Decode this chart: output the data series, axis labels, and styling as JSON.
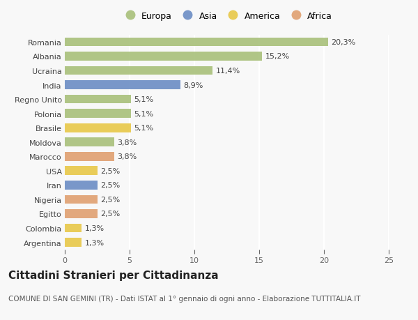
{
  "countries": [
    "Romania",
    "Albania",
    "Ucraina",
    "India",
    "Regno Unito",
    "Polonia",
    "Brasile",
    "Moldova",
    "Marocco",
    "USA",
    "Iran",
    "Nigeria",
    "Egitto",
    "Colombia",
    "Argentina"
  ],
  "values": [
    20.3,
    15.2,
    11.4,
    8.9,
    5.1,
    5.1,
    5.1,
    3.8,
    3.8,
    2.5,
    2.5,
    2.5,
    2.5,
    1.3,
    1.3
  ],
  "labels": [
    "20,3%",
    "15,2%",
    "11,4%",
    "8,9%",
    "5,1%",
    "5,1%",
    "5,1%",
    "3,8%",
    "3,8%",
    "2,5%",
    "2,5%",
    "2,5%",
    "2,5%",
    "1,3%",
    "1,3%"
  ],
  "continents": [
    "Europa",
    "Europa",
    "Europa",
    "Asia",
    "Europa",
    "Europa",
    "America",
    "Europa",
    "Africa",
    "America",
    "Asia",
    "Africa",
    "Africa",
    "America",
    "America"
  ],
  "continent_colors": {
    "Europa": "#a8c07a",
    "Asia": "#6b8dc4",
    "America": "#e8c848",
    "Africa": "#e0a070"
  },
  "legend_order": [
    "Europa",
    "Asia",
    "America",
    "Africa"
  ],
  "title": "Cittadini Stranieri per Cittadinanza",
  "subtitle": "COMUNE DI SAN GEMINI (TR) - Dati ISTAT al 1° gennaio di ogni anno - Elaborazione TUTTITALIA.IT",
  "xlim": [
    0,
    25
  ],
  "xticks": [
    0,
    5,
    10,
    15,
    20,
    25
  ],
  "background_color": "#f8f8f8",
  "bar_height": 0.62,
  "title_fontsize": 11,
  "subtitle_fontsize": 7.5,
  "label_fontsize": 8,
  "tick_fontsize": 8,
  "legend_fontsize": 9
}
